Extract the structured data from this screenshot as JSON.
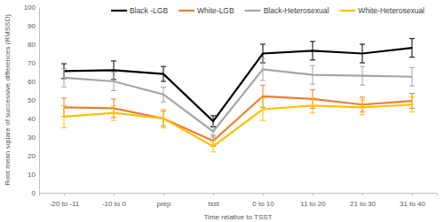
{
  "chart_data": {
    "type": "line",
    "x_label": "Time relative to TSST",
    "y_label": "Root mean square of successive differences (RMSSD)",
    "categories": [
      "-20 to -11",
      "-10 to 0",
      "prep",
      "tsst",
      "0 to 10",
      "11 to 20",
      "21 to 30",
      "31 to 40"
    ],
    "series": [
      {
        "name": "Black -LGB",
        "color": "#000000",
        "values": [
          65.5,
          66,
          64,
          38.5,
          75,
          76.5,
          75,
          78
        ],
        "errors": [
          4,
          5,
          4,
          3,
          5,
          5,
          5,
          5
        ]
      },
      {
        "name": "White-LGB",
        "color": "#ed7d31",
        "values": [
          46,
          45.5,
          40,
          28,
          52,
          50.5,
          47.5,
          49.5
        ],
        "errors": [
          5,
          5,
          4,
          3,
          6,
          5,
          4,
          4
        ]
      },
      {
        "name": "Black-Heterosexual",
        "color": "#a5a5a5",
        "values": [
          62,
          60,
          53,
          33,
          66.5,
          63.5,
          63,
          62.5
        ],
        "errors": [
          5,
          5,
          4,
          3,
          6,
          5,
          5,
          5
        ]
      },
      {
        "name": "White-Heterosexual",
        "color": "#ffc000",
        "values": [
          41,
          43,
          40,
          25,
          45,
          47,
          46,
          47.5
        ],
        "errors": [
          6,
          4,
          5,
          3,
          6,
          4,
          4,
          4
        ]
      }
    ],
    "ylim": [
      0,
      100
    ],
    "yticks": [
      0,
      10,
      20,
      30,
      40,
      50,
      60,
      70,
      80,
      90,
      100
    ],
    "grid": false,
    "legend": "top"
  }
}
